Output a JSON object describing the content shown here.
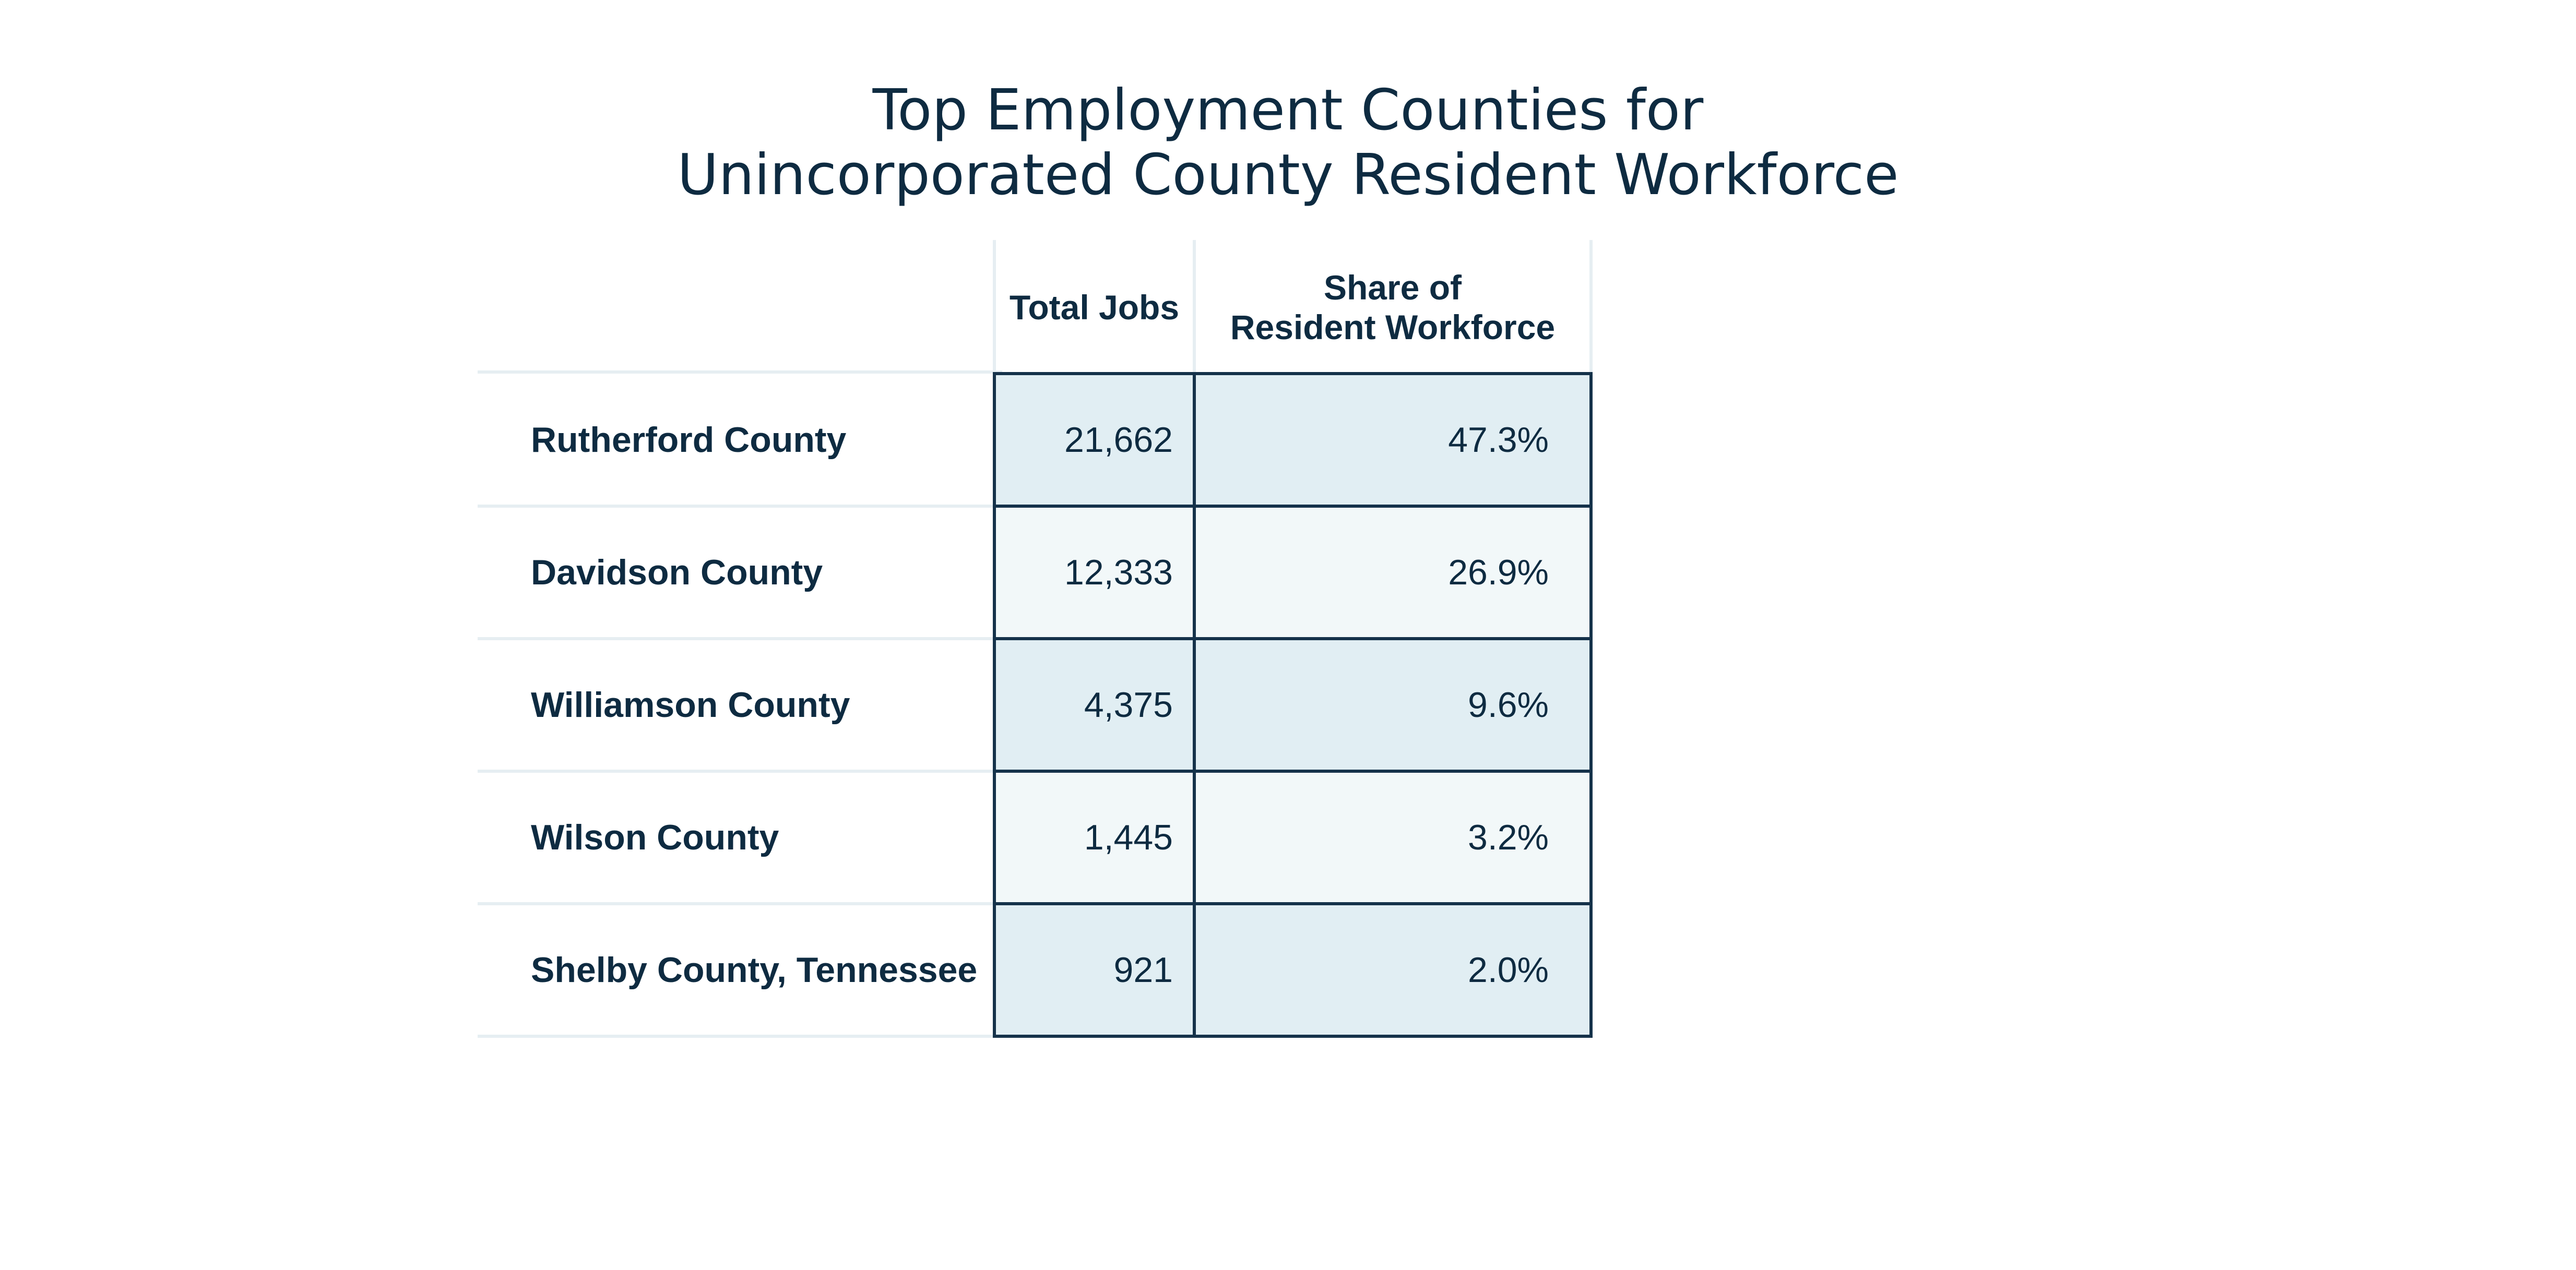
{
  "chart_data": {
    "type": "table",
    "title_lines": [
      "Top Employment Counties for",
      "Unincorporated County Resident Workforce"
    ],
    "columns": [
      {
        "key": "jobs",
        "label_lines": [
          "Total Jobs"
        ]
      },
      {
        "key": "share",
        "label_lines": [
          "Share of",
          "Resident Workforce"
        ]
      }
    ],
    "rows": [
      {
        "label": "Rutherford County",
        "jobs": "21,662",
        "share": "47.3%"
      },
      {
        "label": "Davidson County",
        "jobs": "12,333",
        "share": "26.9%"
      },
      {
        "label": "Williamson County",
        "jobs": "4,375",
        "share": "9.6%"
      },
      {
        "label": "Wilson County",
        "jobs": "1,445",
        "share": "3.2%"
      },
      {
        "label": "Shelby County, Tennessee",
        "jobs": "921",
        "share": "2.0%"
      }
    ]
  }
}
